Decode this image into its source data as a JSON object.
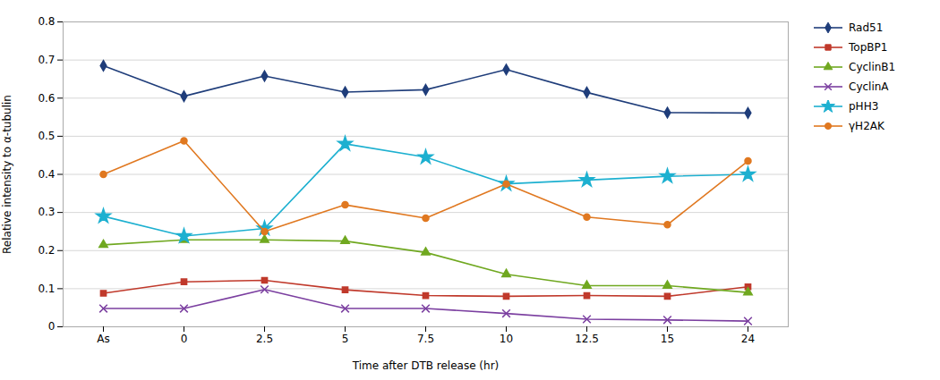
{
  "chart_data": {
    "type": "line",
    "categories": [
      "As",
      "0",
      "2.5",
      "5",
      "7.5",
      "10",
      "12.5",
      "15",
      "24"
    ],
    "xlabel": "Time after DTB release (hr)",
    "ylabel": "Relative intensity to α-tubulin",
    "ylim": [
      0,
      0.8
    ],
    "yticks": [
      0,
      0.1,
      0.2,
      0.3,
      0.4,
      0.5,
      0.6,
      0.7,
      0.8
    ],
    "grid": true,
    "legend": "right",
    "series": [
      {
        "name": "Rad51",
        "color": "#1f3d7a",
        "marker": "diamond",
        "values": [
          0.685,
          0.605,
          0.658,
          0.616,
          0.622,
          0.675,
          0.615,
          0.562,
          0.561
        ]
      },
      {
        "name": "TopBP1",
        "color": "#c0392b",
        "marker": "square",
        "values": [
          0.088,
          0.118,
          0.122,
          0.097,
          0.082,
          0.08,
          0.082,
          0.08,
          0.105
        ]
      },
      {
        "name": "CyclinB1",
        "color": "#70a820",
        "marker": "triangle",
        "values": [
          0.215,
          0.228,
          0.228,
          0.225,
          0.195,
          0.138,
          0.108,
          0.108,
          0.09
        ]
      },
      {
        "name": "CyclinA",
        "color": "#7b3fa0",
        "marker": "x",
        "values": [
          0.048,
          0.048,
          0.098,
          0.048,
          0.048,
          0.035,
          0.02,
          0.018,
          0.015
        ]
      },
      {
        "name": "pHH3",
        "color": "#1db0d0",
        "marker": "star",
        "values": [
          0.29,
          0.238,
          0.258,
          0.48,
          0.445,
          0.375,
          0.385,
          0.395,
          0.4
        ]
      },
      {
        "name": "γH2AK",
        "color": "#e07820",
        "marker": "circle",
        "values": [
          0.4,
          0.488,
          0.25,
          0.32,
          0.285,
          0.375,
          0.288,
          0.268,
          0.435
        ]
      }
    ]
  }
}
